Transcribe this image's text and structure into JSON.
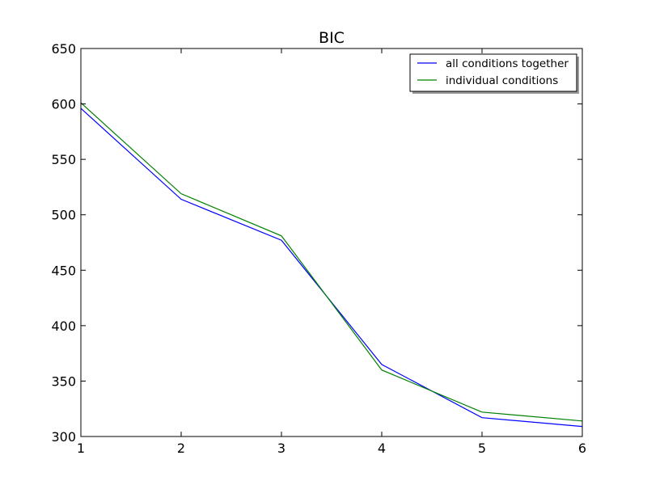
{
  "chart_data": {
    "type": "line",
    "title": "BIC",
    "xlabel": "",
    "ylabel": "",
    "x": [
      1,
      2,
      3,
      4,
      5,
      6
    ],
    "xlim": [
      1,
      6
    ],
    "ylim": [
      300,
      650
    ],
    "xticks": [
      1,
      2,
      3,
      4,
      5,
      6
    ],
    "yticks": [
      300,
      350,
      400,
      450,
      500,
      550,
      600,
      650
    ],
    "grid": false,
    "legend_position": "top-right",
    "series": [
      {
        "name": "all conditions together",
        "color": "#0000ff",
        "values": [
          596,
          514,
          477,
          365,
          317,
          309
        ]
      },
      {
        "name": "individual conditions",
        "color": "#008000",
        "values": [
          601,
          519,
          481,
          360,
          322,
          314
        ]
      }
    ]
  }
}
